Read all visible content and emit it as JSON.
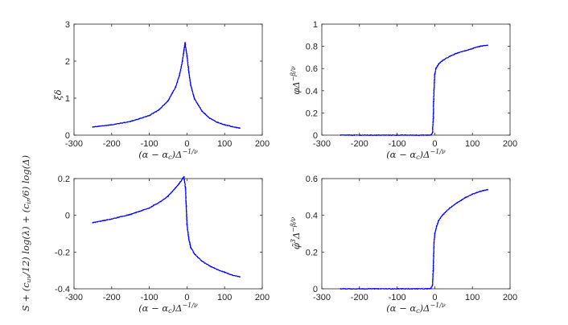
{
  "figure": {
    "marker_color": "#0000ff",
    "axis_color": "#262626"
  },
  "chart_data": [
    {
      "type": "scatter",
      "xlabel": "(α − α_c)Δ^{−1/ν}",
      "ylabel": "ξδ",
      "xlim": [
        -300,
        200
      ],
      "ylim": [
        0,
        3
      ],
      "xticks": [
        "-300",
        "-200",
        "-100",
        "0",
        "100",
        "200"
      ],
      "yticks": [
        "0",
        "1",
        "2",
        "3"
      ],
      "grid": false,
      "series": [
        {
          "points": [
            [
              -250,
              0.22
            ],
            [
              -200,
              0.28
            ],
            [
              -150,
              0.37
            ],
            [
              -100,
              0.53
            ],
            [
              -75,
              0.68
            ],
            [
              -50,
              0.93
            ],
            [
              -30,
              1.3
            ],
            [
              -20,
              1.62
            ],
            [
              -12,
              2.0
            ],
            [
              -8,
              2.3
            ],
            [
              -5,
              2.5
            ],
            [
              0,
              2.15
            ],
            [
              5,
              1.7
            ],
            [
              10,
              1.35
            ],
            [
              20,
              0.98
            ],
            [
              40,
              0.65
            ],
            [
              60,
              0.46
            ],
            [
              80,
              0.35
            ],
            [
              100,
              0.28
            ],
            [
              120,
              0.23
            ],
            [
              140,
              0.19
            ]
          ]
        }
      ]
    },
    {
      "type": "scatter",
      "xlabel": "(α − α_c)Δ^{−1/ν}",
      "ylabel": "φΔ^{−β/ν}",
      "xlim": [
        -300,
        200
      ],
      "ylim": [
        0,
        1
      ],
      "xticks": [
        "-300",
        "-200",
        "-100",
        "0",
        "100",
        "200"
      ],
      "yticks": [
        "0",
        "0.2",
        "0.4",
        "0.6",
        "0.8",
        "1"
      ],
      "grid": false,
      "series": [
        {
          "points": [
            [
              -250,
              0
            ],
            [
              -200,
              0
            ],
            [
              -150,
              0
            ],
            [
              -100,
              0
            ],
            [
              -50,
              0
            ],
            [
              -20,
              0
            ],
            [
              -10,
              0.002
            ],
            [
              -6,
              0.02
            ],
            [
              -4,
              0.15
            ],
            [
              -3,
              0.3
            ],
            [
              -2,
              0.42
            ],
            [
              0,
              0.55
            ],
            [
              3,
              0.6
            ],
            [
              10,
              0.64
            ],
            [
              20,
              0.67
            ],
            [
              40,
              0.71
            ],
            [
              60,
              0.74
            ],
            [
              80,
              0.76
            ],
            [
              100,
              0.78
            ],
            [
              120,
              0.8
            ],
            [
              140,
              0.81
            ]
          ]
        }
      ]
    },
    {
      "type": "scatter",
      "xlabel": "(α − α_c)Δ^{−1/ν}",
      "ylabel": "S + (c_uv/12) log(λ) + (c_ir/6) log(Δ)",
      "xlim": [
        -300,
        200
      ],
      "ylim": [
        -0.4,
        0.2
      ],
      "xticks": [
        "-300",
        "-200",
        "-100",
        "0",
        "100",
        "200"
      ],
      "yticks": [
        "-0.4",
        "-0.2",
        "0",
        "0.2"
      ],
      "grid": false,
      "series": [
        {
          "points": [
            [
              -250,
              -0.04
            ],
            [
              -200,
              -0.02
            ],
            [
              -150,
              0.005
            ],
            [
              -100,
              0.04
            ],
            [
              -70,
              0.075
            ],
            [
              -50,
              0.105
            ],
            [
              -30,
              0.15
            ],
            [
              -20,
              0.175
            ],
            [
              -12,
              0.2
            ],
            [
              -8,
              0.21
            ],
            [
              -4,
              0.15
            ],
            [
              -2,
              0.05
            ],
            [
              0,
              -0.05
            ],
            [
              5,
              -0.13
            ],
            [
              10,
              -0.175
            ],
            [
              20,
              -0.21
            ],
            [
              40,
              -0.25
            ],
            [
              60,
              -0.275
            ],
            [
              80,
              -0.295
            ],
            [
              100,
              -0.31
            ],
            [
              120,
              -0.325
            ],
            [
              140,
              -0.335
            ]
          ]
        }
      ]
    },
    {
      "type": "scatter",
      "xlabel": "(α − α_c)Δ^{−1/ν}",
      "ylabel": "φ̃³Δ^{−β/ν}",
      "xlim": [
        -300,
        200
      ],
      "ylim": [
        0,
        0.6
      ],
      "xticks": [
        "-300",
        "-200",
        "-100",
        "0",
        "100",
        "200"
      ],
      "yticks": [
        "0",
        "0.2",
        "0.4",
        "0.6"
      ],
      "grid": false,
      "series": [
        {
          "points": [
            [
              -250,
              0
            ],
            [
              -200,
              0
            ],
            [
              -150,
              0
            ],
            [
              -100,
              0
            ],
            [
              -50,
              0
            ],
            [
              -20,
              0
            ],
            [
              -10,
              0.002
            ],
            [
              -6,
              0.02
            ],
            [
              -4,
              0.1
            ],
            [
              -3,
              0.18
            ],
            [
              -2,
              0.25
            ],
            [
              0,
              0.3
            ],
            [
              5,
              0.34
            ],
            [
              10,
              0.37
            ],
            [
              20,
              0.4
            ],
            [
              40,
              0.44
            ],
            [
              60,
              0.47
            ],
            [
              80,
              0.495
            ],
            [
              100,
              0.515
            ],
            [
              120,
              0.53
            ],
            [
              140,
              0.54
            ]
          ]
        }
      ]
    }
  ]
}
